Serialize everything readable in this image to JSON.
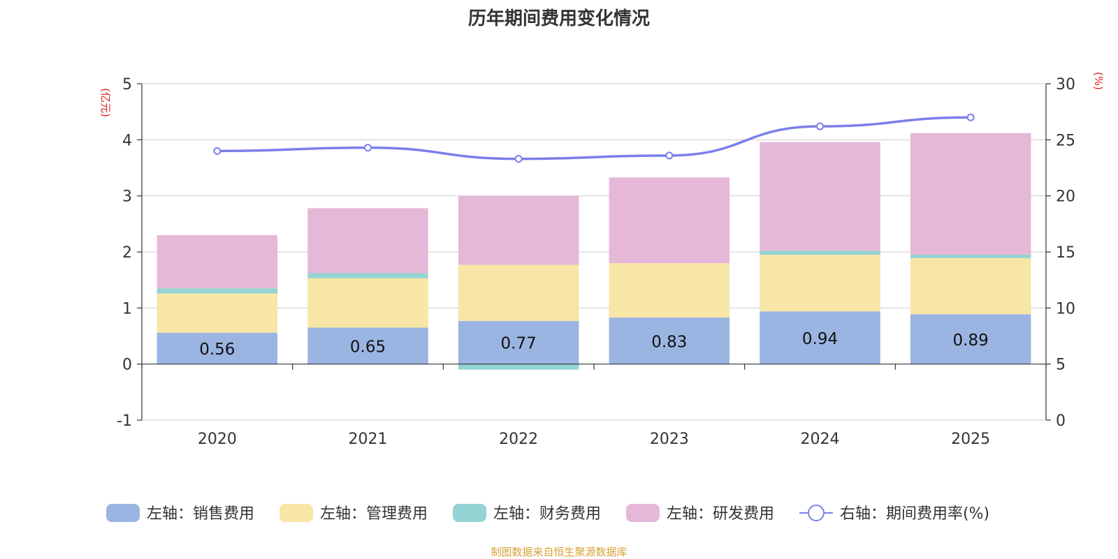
{
  "chart_data": {
    "type": "bar",
    "title": "历年期间费用变化情况",
    "categories": [
      "2020",
      "2021",
      "2022",
      "2023",
      "2024",
      "2025"
    ],
    "left_axis": {
      "unit_label": "(亿元)",
      "ylim": [
        -1,
        5
      ],
      "ticks": [
        "-1",
        "0",
        "1",
        "2",
        "3",
        "4",
        "5"
      ]
    },
    "right_axis": {
      "unit_label": "(%)",
      "ylim": [
        0,
        30
      ],
      "ticks": [
        "0",
        "5",
        "10",
        "15",
        "20",
        "25",
        "30"
      ]
    },
    "series": [
      {
        "name": "左轴：销售费用",
        "type": "bar",
        "stack": true,
        "axis": "left",
        "color": "#9bb5e2",
        "values": [
          0.56,
          0.65,
          0.77,
          0.83,
          0.94,
          0.89
        ],
        "data_labels": [
          "0.56",
          "0.65",
          "0.77",
          "0.83",
          "0.94",
          "0.89"
        ]
      },
      {
        "name": "左轴：管理费用",
        "type": "bar",
        "stack": true,
        "axis": "left",
        "color": "#f8e6a6",
        "values": [
          0.7,
          0.88,
          1.0,
          0.97,
          1.01,
          1.0
        ]
      },
      {
        "name": "左轴：财务费用",
        "type": "bar",
        "stack": true,
        "axis": "left",
        "color": "#94d4d4",
        "values": [
          0.09,
          0.09,
          -0.1,
          0.0,
          0.07,
          0.06
        ]
      },
      {
        "name": "左轴：研发费用",
        "type": "bar",
        "stack": true,
        "axis": "left",
        "color": "#e6b8d8",
        "values": [
          0.95,
          1.16,
          1.23,
          1.53,
          1.94,
          2.17
        ]
      },
      {
        "name": "右轴：期间费用率(%)",
        "type": "line",
        "axis": "right",
        "color": "#7b7fea",
        "values": [
          24.0,
          24.3,
          23.3,
          23.6,
          26.2,
          27.0
        ]
      }
    ],
    "legend_position": "bottom-center",
    "grid": true
  },
  "source_text": "制图数据来自恒生聚源数据库",
  "colors": {
    "title": "#333333",
    "axis_unit": "#e02020",
    "source": "#d6a237",
    "axis": "#333333",
    "grid": "#cccccc"
  }
}
